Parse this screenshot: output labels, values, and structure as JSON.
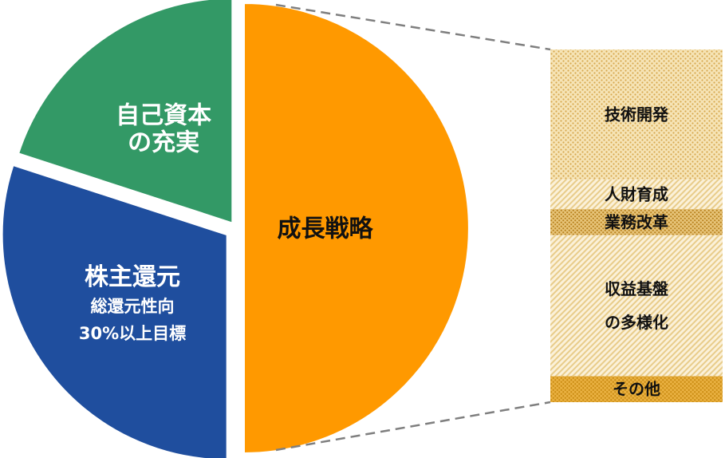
{
  "chart_data": {
    "type": "pie",
    "title": "",
    "pie": {
      "slices": [
        {
          "name": "成長戦略",
          "value": 50,
          "color": "#FF9900",
          "label_lines": [
            "成長戦略"
          ],
          "label_color": "#111111"
        },
        {
          "name": "株主還元",
          "value": 30,
          "color": "#1F4E9E",
          "label_lines": [
            "株主還元",
            "総還元性向",
            "30%以上目標"
          ],
          "label_color": "#ffffff"
        },
        {
          "name": "自己資本の充実",
          "value": 20,
          "color": "#339966",
          "label_lines": [
            "自己資本",
            "の充実"
          ],
          "label_color": "#ffffff"
        }
      ]
    },
    "breakdown": {
      "of": "成長戦略",
      "segments": [
        {
          "name": "技術開発",
          "value": 35,
          "label_lines": [
            "技術開発"
          ],
          "pattern": "dots-light"
        },
        {
          "name": "人財育成",
          "value": 8,
          "label_lines": [
            "人財育成"
          ],
          "pattern": "diag-light"
        },
        {
          "name": "業務改革",
          "value": 7,
          "label_lines": [
            "業務改革"
          ],
          "pattern": "dots-dark"
        },
        {
          "name": "収益基盤の多様化",
          "value": 38,
          "label_lines": [
            "収益基盤",
            "の多様化"
          ],
          "pattern": "diag-light"
        },
        {
          "name": "その他",
          "value": 7,
          "label_lines": [
            "その他"
          ],
          "pattern": "dots-gold"
        }
      ]
    }
  }
}
